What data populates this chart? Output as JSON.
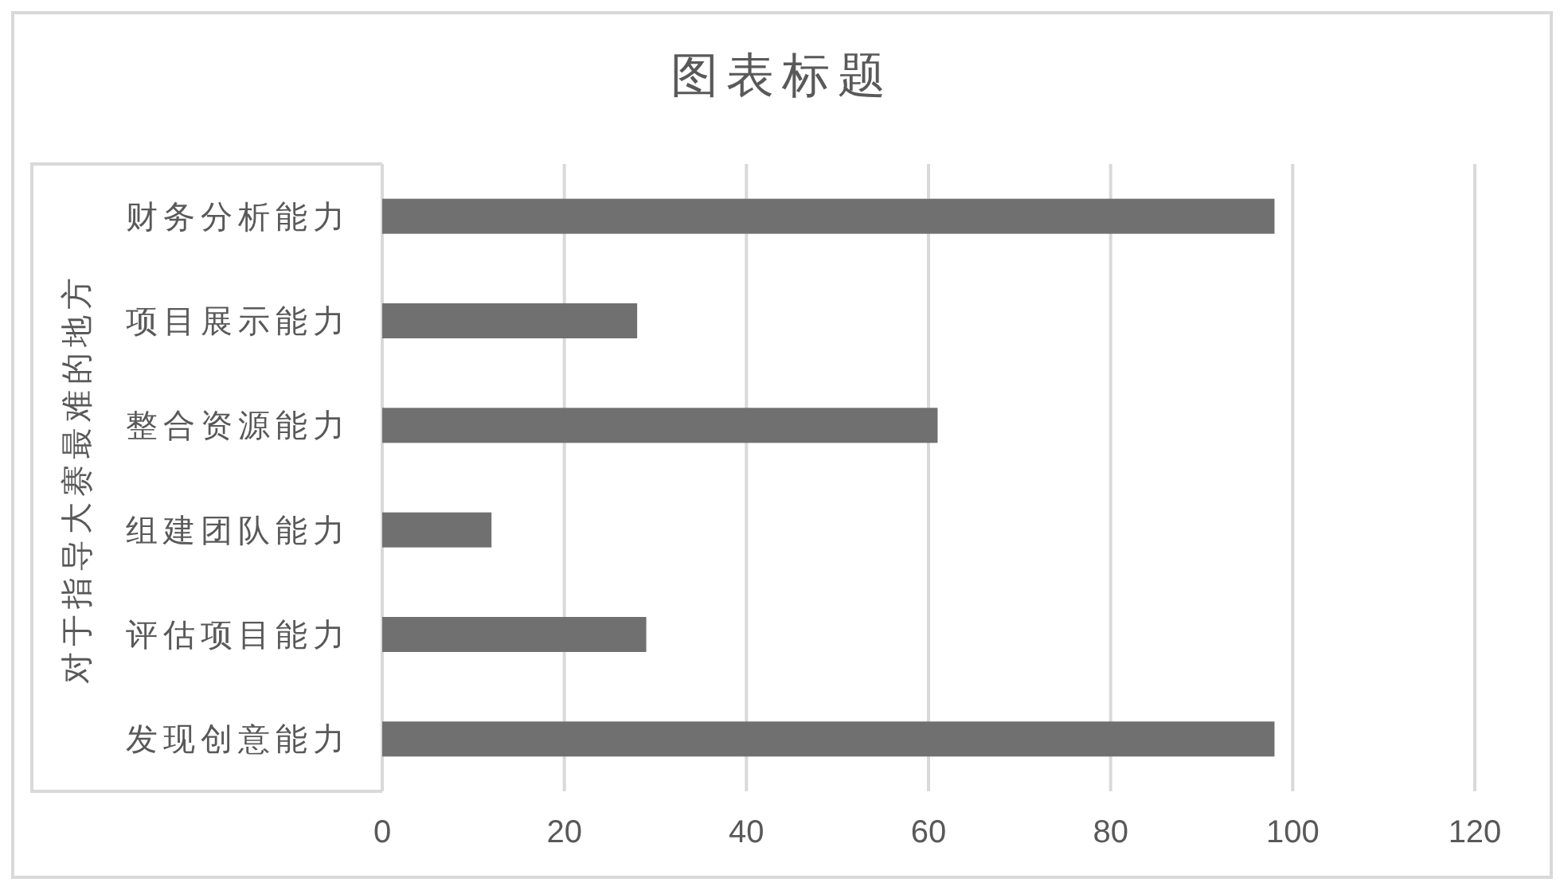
{
  "chart_data": {
    "type": "bar",
    "orientation": "horizontal",
    "title": "图表标题",
    "ylabel": "对于指导大赛最难的地方",
    "categories": [
      "财务分析能力",
      "项目展示能力",
      "整合资源能力",
      "组建团队能力",
      "评估项目能力",
      "发现创意能力"
    ],
    "values": [
      98,
      28,
      61,
      12,
      29,
      98
    ],
    "color": "#707070",
    "xlim": [
      0,
      120
    ],
    "xticks": [
      0,
      20,
      40,
      60,
      80,
      100,
      120
    ],
    "grid": "x"
  }
}
